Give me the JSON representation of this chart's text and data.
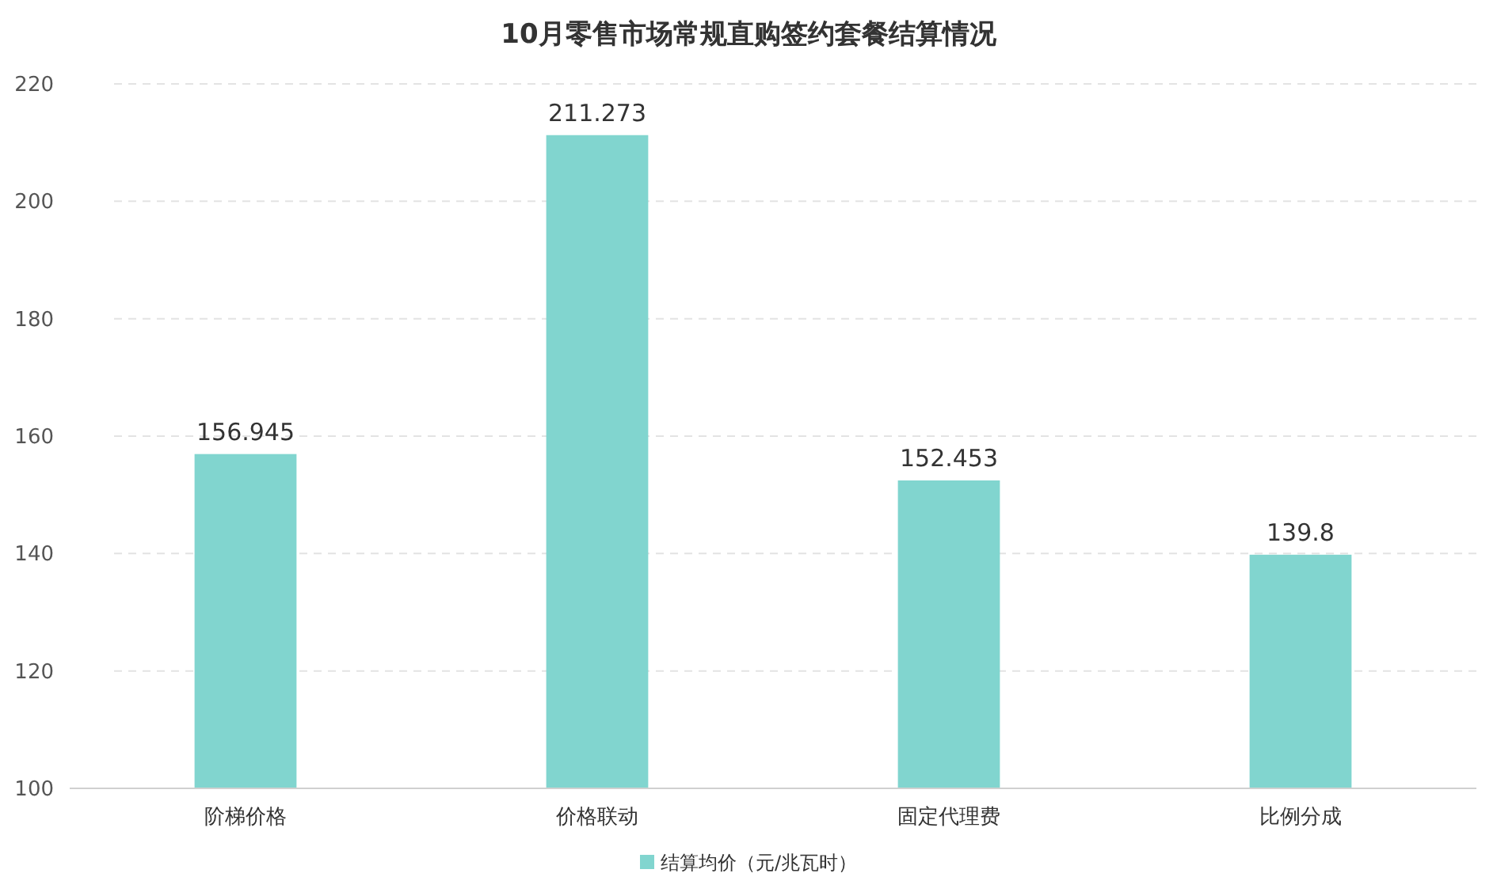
{
  "chart_data": {
    "type": "bar",
    "title": "10月零售市场常规直购签约套餐结算情况",
    "categories": [
      "阶梯价格",
      "价格联动",
      "固定代理费",
      "比例分成"
    ],
    "series": [
      {
        "name": "结算均价（元/兆瓦时）",
        "color": "#81d5cf",
        "values": [
          156.945,
          211.273,
          152.453,
          139.8
        ]
      }
    ],
    "ylim": [
      100,
      220
    ],
    "yticks": [
      100,
      120,
      140,
      160,
      180,
      200,
      220
    ],
    "grid": "y",
    "legend": "bottom",
    "data_labels": true
  }
}
